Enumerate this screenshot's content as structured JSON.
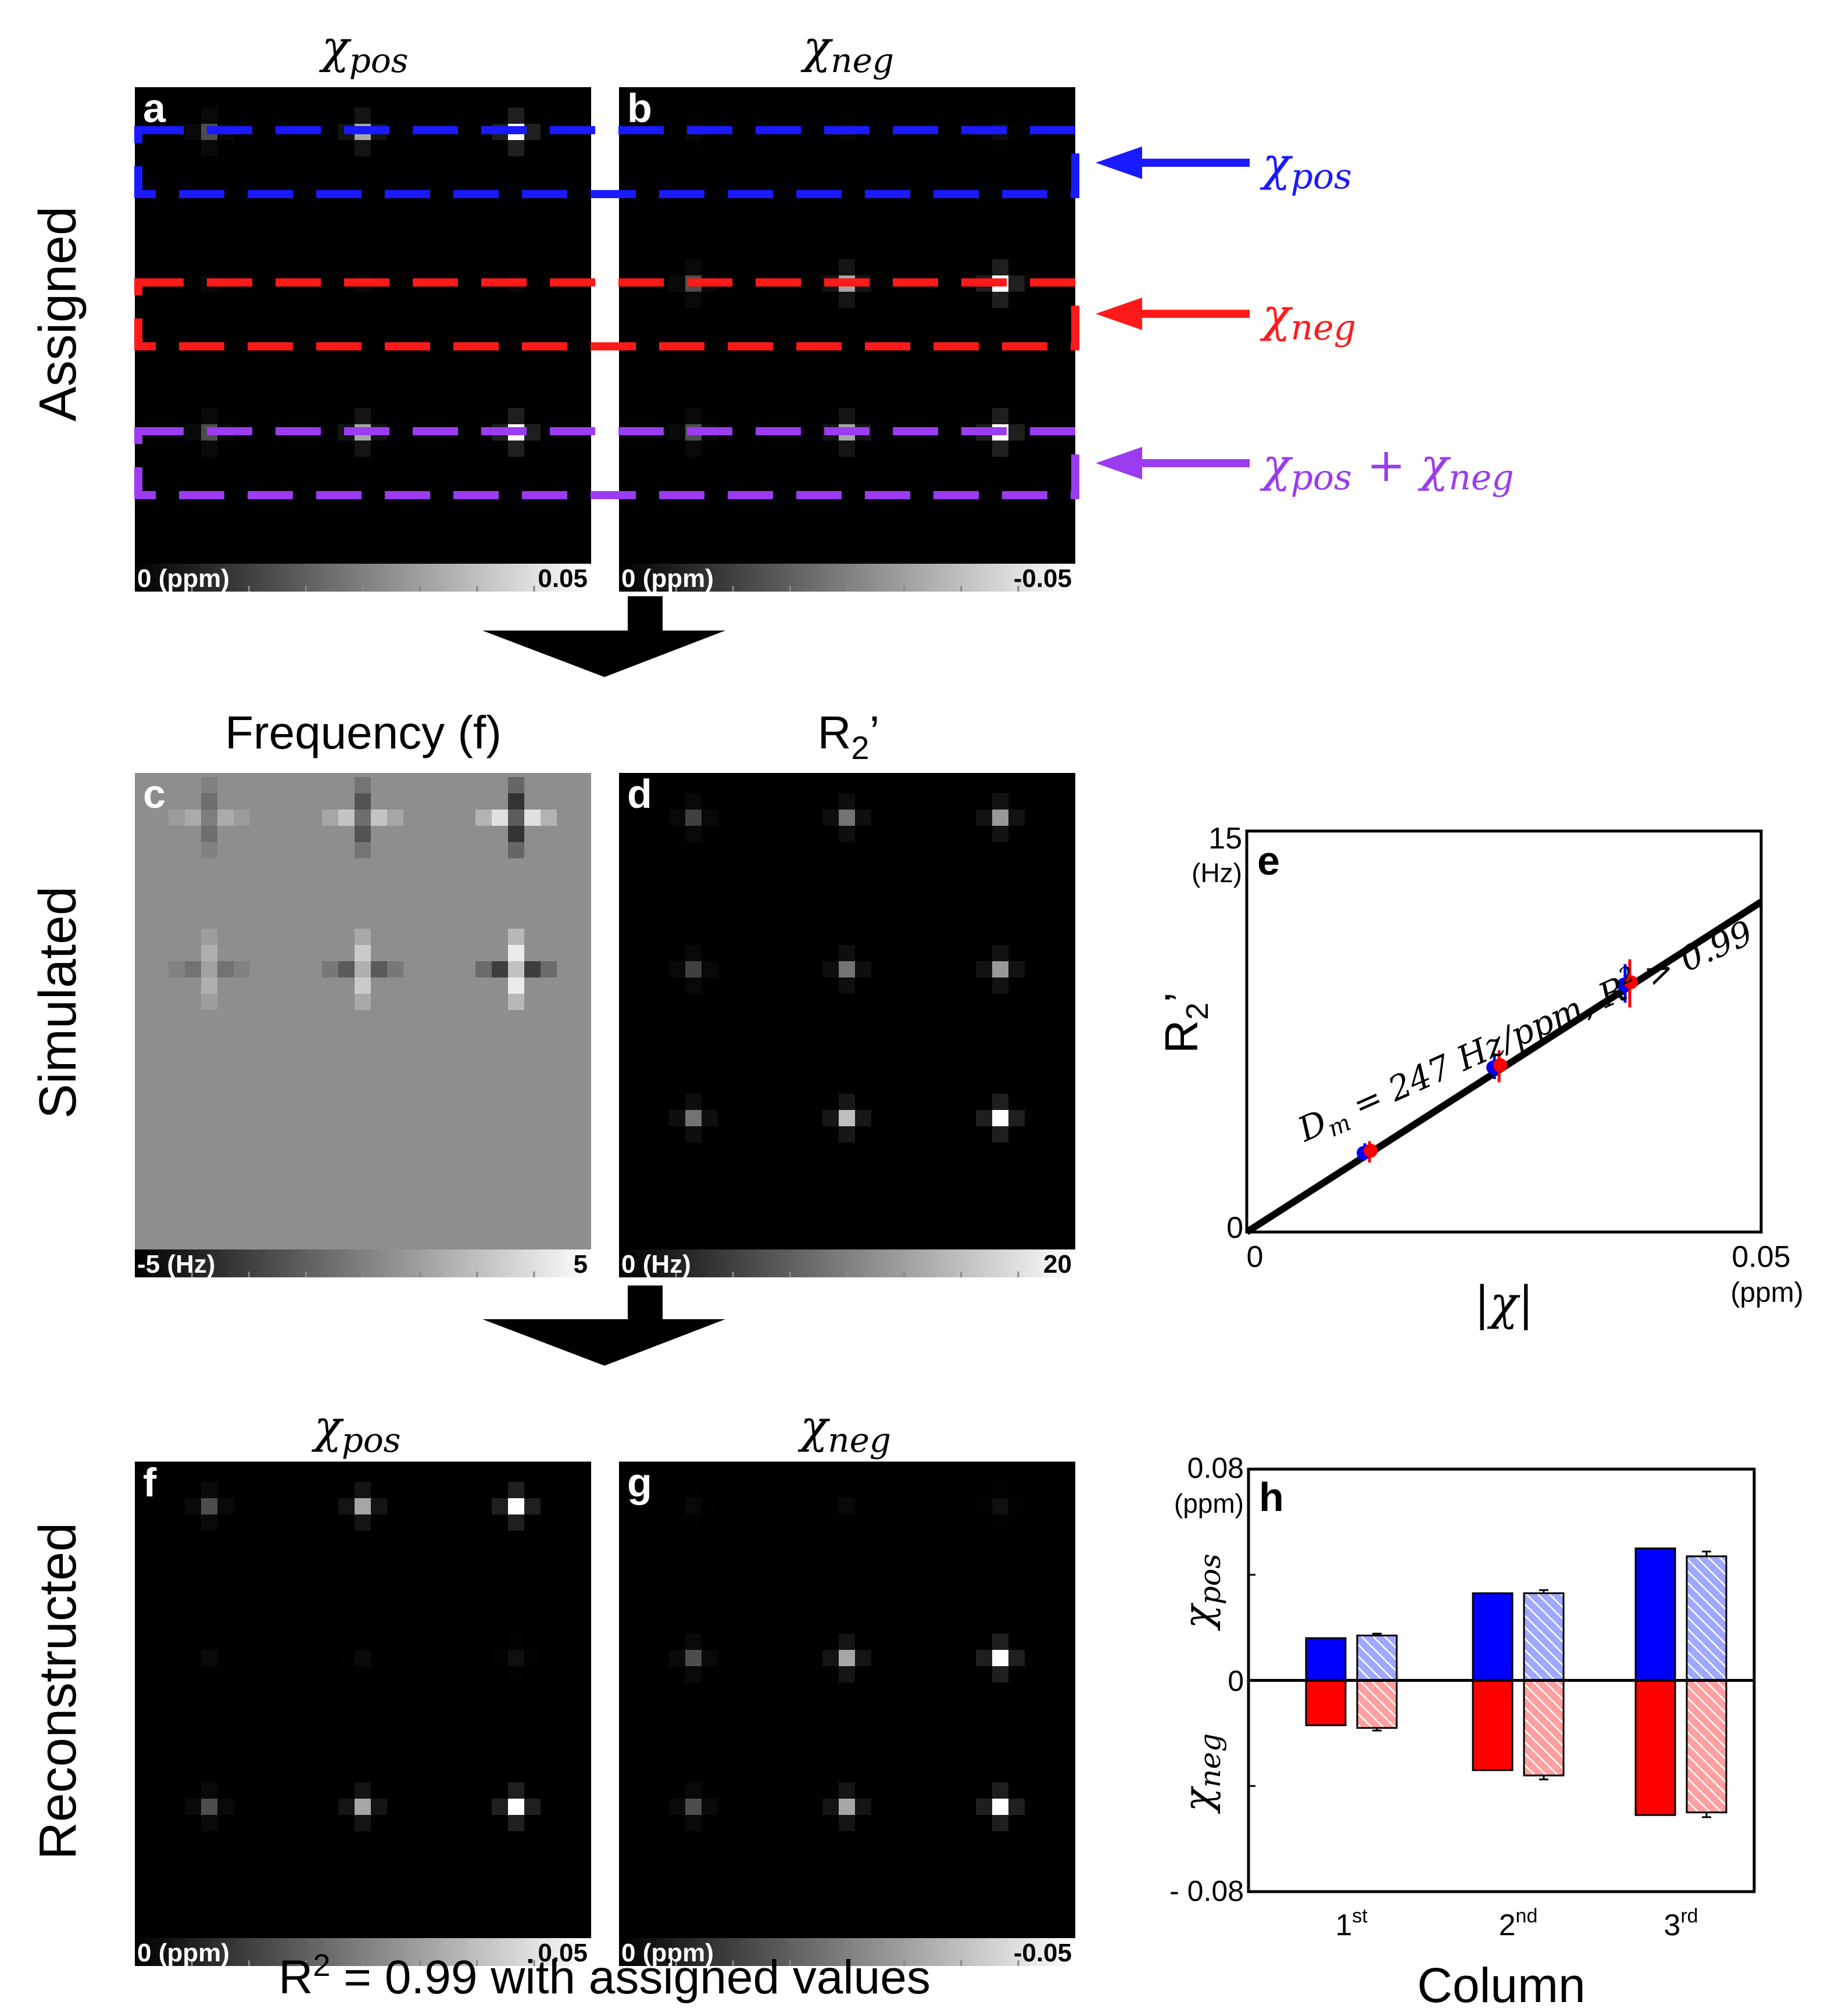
{
  "row_labels": {
    "assigned": "Assigned",
    "simulated": "Simulated",
    "reconstructed": "Reconstructed"
  },
  "titles": {
    "a_chi": "χ",
    "a_sub": "pos",
    "b_chi": "χ",
    "b_sub": "neg",
    "c": "Frequency (f)",
    "d_main": "R",
    "d_sub": "2",
    "d_prime": "’",
    "f_chi": "χ",
    "f_sub": "pos",
    "g_chi": "χ",
    "g_sub": "neg"
  },
  "panel_letters": {
    "a": "a",
    "b": "b",
    "c": "c",
    "d": "d",
    "e": "e",
    "f": "f",
    "g": "g",
    "h": "h"
  },
  "colorbars": {
    "a": {
      "left": "0 (ppm)",
      "right": "0.05"
    },
    "b": {
      "left": "0 (ppm)",
      "right": "-0.05"
    },
    "c": {
      "left": "-5 (Hz)",
      "right": "5"
    },
    "d": {
      "left": "0 (Hz)",
      "right": "20"
    },
    "f": {
      "left": "0 (ppm)",
      "right": "0.05"
    },
    "g": {
      "left": "0 (ppm)",
      "right": "-0.05"
    }
  },
  "legend": {
    "pos": {
      "chi": "χ",
      "sub": "pos",
      "color": "#1a1aff"
    },
    "neg": {
      "chi": "χ",
      "sub": "neg",
      "color": "#ff1a1a"
    },
    "both": {
      "chi1": "χ",
      "sub1": "pos",
      "plus": " + ",
      "chi2": "χ",
      "sub2": "neg",
      "color": "#9b3cf0"
    }
  },
  "maps": {
    "assigned_pos": {
      "rows": [
        [
          0.3,
          0.65,
          1.0
        ],
        [
          0.04,
          0.04,
          0.04
        ],
        [
          0.3,
          0.65,
          1.0
        ]
      ]
    },
    "assigned_neg": {
      "rows": [
        [
          0.03,
          0.03,
          0.05
        ],
        [
          0.3,
          0.65,
          1.0
        ],
        [
          0.3,
          0.65,
          1.0
        ]
      ]
    },
    "r2": {
      "rows": [
        [
          0.25,
          0.45,
          0.6
        ],
        [
          0.25,
          0.45,
          0.6
        ],
        [
          0.45,
          0.75,
          1.0
        ]
      ]
    },
    "recon_pos": {
      "rows": [
        [
          0.3,
          0.65,
          1.0
        ],
        [
          0.04,
          0.04,
          0.06
        ],
        [
          0.3,
          0.65,
          1.0
        ]
      ]
    },
    "recon_neg": {
      "rows": [
        [
          0.03,
          0.03,
          0.06
        ],
        [
          0.3,
          0.65,
          1.0
        ],
        [
          0.3,
          0.65,
          1.0
        ]
      ]
    },
    "frequency": {
      "rows": [
        [
          0.35,
          0.65,
          1.0
        ],
        [
          -0.35,
          -0.65,
          -1.0
        ]
      ]
    }
  },
  "colors": {
    "pos": "#0000ff",
    "neg": "#ff0000",
    "both": "#9b3cf0",
    "fit_line": "#000000"
  },
  "chart_data": [
    {
      "type": "scatter",
      "panel": "e",
      "ylabel_main": "R",
      "ylabel_sub": "2",
      "ylabel_prime": "’",
      "xlabel": "|χ|",
      "xlim": [
        0,
        0.05
      ],
      "ylim": [
        0,
        15
      ],
      "x_tick_labels": {
        "min": "0",
        "max": "0.05"
      },
      "y_tick_labels": {
        "min": "0",
        "max": "15"
      },
      "x_unit": "(ppm)",
      "y_unit": "(Hz)",
      "points": [
        {
          "x": 0.0117,
          "y": 3.0,
          "err": 0.4
        },
        {
          "x": 0.0243,
          "y": 6.2,
          "err": 0.6
        },
        {
          "x": 0.037,
          "y": 9.3,
          "err": 0.9
        }
      ],
      "fit": {
        "slope": 247,
        "intercept": 0
      },
      "annotation": {
        "d": "D",
        "m": "m",
        "text": " = 247 Hz/ppm, R",
        "sup": "2",
        "tail": " > 0.99"
      }
    },
    {
      "type": "bar",
      "panel": "h",
      "xlabel": "Column",
      "categories": [
        {
          "base": "1",
          "sup": "st"
        },
        {
          "base": "2",
          "sup": "nd"
        },
        {
          "base": "3",
          "sup": "rd"
        }
      ],
      "ylim": [
        -0.08,
        0.08
      ],
      "y_tick_labels": {
        "max": "0.08",
        "zero": "0",
        "min": "- 0.08"
      },
      "y_unit": "(ppm)",
      "ylabel_pos": {
        "chi": "χ",
        "sub": "pos"
      },
      "ylabel_neg": {
        "chi": "χ",
        "sub": "neg"
      },
      "series": [
        {
          "name": "assigned χpos",
          "values": [
            0.016,
            0.033,
            0.05
          ],
          "err": [
            0,
            0,
            0
          ],
          "color": "#0000ff",
          "hatched": false
        },
        {
          "name": "reconstructed χpos",
          "values": [
            0.017,
            0.033,
            0.047
          ],
          "err": [
            0.0007,
            0.0012,
            0.0018
          ],
          "color": "#0000ff",
          "hatched": true
        },
        {
          "name": "assigned χneg",
          "values": [
            -0.017,
            -0.034,
            -0.051
          ],
          "err": [
            0,
            0,
            0
          ],
          "color": "#ff0000",
          "hatched": false
        },
        {
          "name": "reconstructed χneg",
          "values": [
            -0.018,
            -0.036,
            -0.05
          ],
          "err": [
            0.001,
            0.0015,
            0.0018
          ],
          "color": "#ff0000",
          "hatched": true
        }
      ]
    }
  ],
  "caption": {
    "r": "R",
    "sup": "2",
    "text": " = 0.99 with assigned values"
  }
}
